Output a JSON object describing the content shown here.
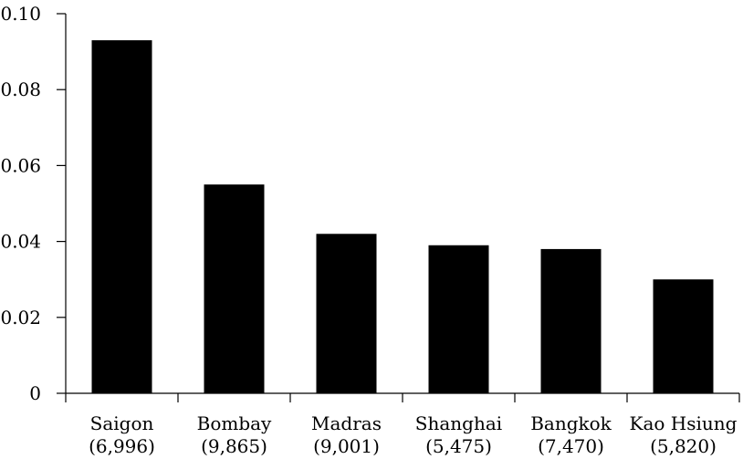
{
  "chart_data": {
    "type": "bar",
    "categories": [
      "Saigon",
      "Bombay",
      "Madras",
      "Shanghai",
      "Bangkok",
      "Kao Hsiung"
    ],
    "category_sublabels": [
      "(6,996)",
      "(9,865)",
      "(9,001)",
      "(5,475)",
      "(7,470)",
      "(5,820)"
    ],
    "values": [
      0.093,
      0.055,
      0.042,
      0.039,
      0.038,
      0.03
    ],
    "ylim": [
      0,
      0.1
    ],
    "yticks": [
      0,
      0.02,
      0.04,
      0.06,
      0.08,
      0.1
    ],
    "ytick_labels": [
      "0",
      "0.02",
      "0.04",
      "0.06",
      "0.08",
      "0.10"
    ],
    "title": "",
    "xlabel": "",
    "ylabel": "",
    "grid": false,
    "bar_color": "#000000"
  }
}
